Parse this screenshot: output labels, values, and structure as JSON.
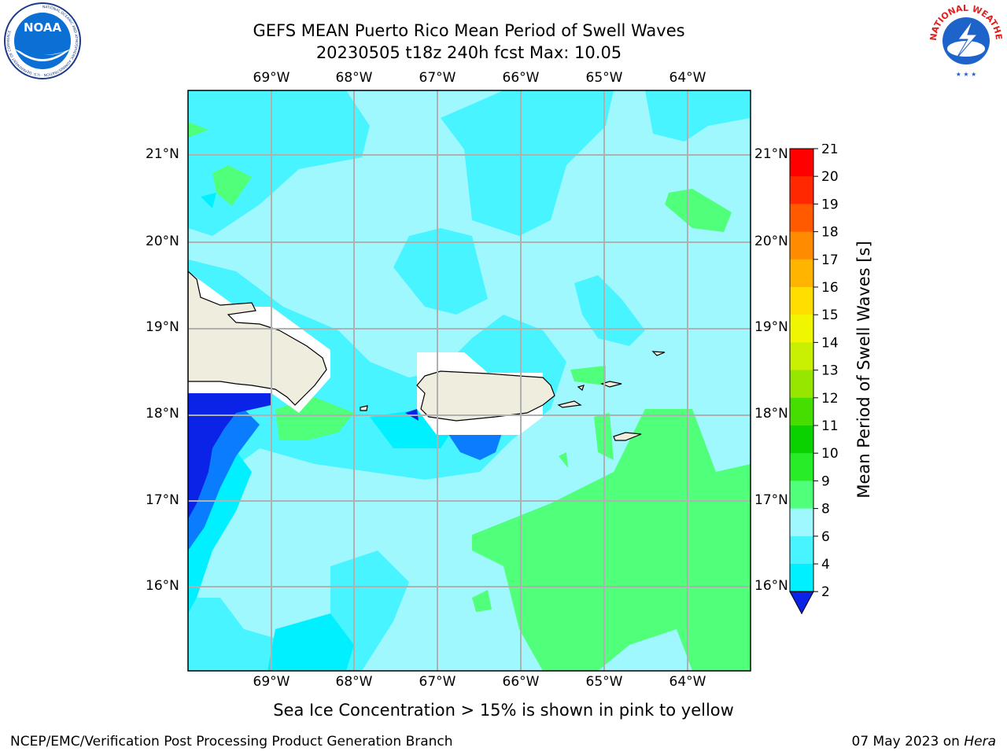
{
  "title": {
    "line1": "GEFS MEAN Puerto Rico Mean Period of Swell Waves",
    "line2": "20230505 t18z 240h fcst   Max: 10.05"
  },
  "map": {
    "lon_labels": [
      "69°W",
      "68°W",
      "67°W",
      "66°W",
      "65°W",
      "64°W"
    ],
    "lat_labels": [
      "21°N",
      "20°N",
      "19°N",
      "18°N",
      "17°N",
      "16°N"
    ],
    "caption": "Sea Ice Concentration > 15% is shown in pink to yellow"
  },
  "colorbar": {
    "label": "Mean Period of Swell Waves [s]",
    "ticks": [
      "2",
      "4",
      "6",
      "8",
      "9",
      "10",
      "11",
      "12",
      "13",
      "14",
      "15",
      "16",
      "17",
      "18",
      "19",
      "20",
      "21"
    ],
    "colors": [
      "#0a23e6",
      "#0a7dff",
      "#00f0ff",
      "#48f4ff",
      "#a0f8ff",
      "#50ff7a",
      "#28ec28",
      "#0ad200",
      "#46dd00",
      "#96e600",
      "#c8f000",
      "#f0f500",
      "#ffde00",
      "#ffb400",
      "#ff8c00",
      "#ff5a00",
      "#ff2800",
      "#ff0000"
    ]
  },
  "logos": {
    "noaa": {
      "text": "NOAA",
      "ring": "NATIONAL OCEANIC AND ATMOSPHERIC ADMINISTRATION · U.S. DEPARTMENT OF COMMERCE"
    },
    "nws": {
      "ring": "NATIONAL WEATHER SERVICE"
    }
  },
  "footer": {
    "left": "NCEP/EMC/Verification Post Processing Product Generation Branch",
    "right_prefix": "07 May 2023 on ",
    "right_host": "Hera"
  }
}
